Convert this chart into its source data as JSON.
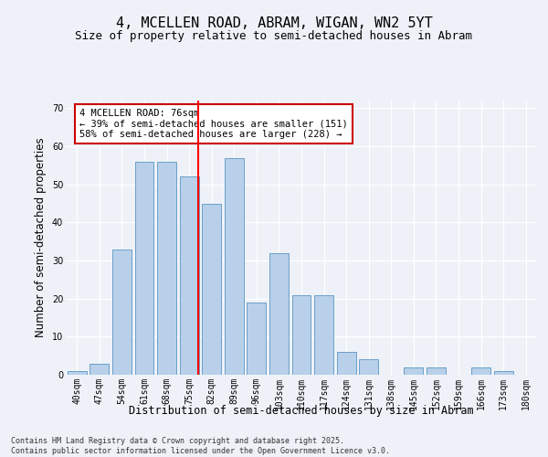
{
  "title_line1": "4, MCELLEN ROAD, ABRAM, WIGAN, WN2 5YT",
  "title_line2": "Size of property relative to semi-detached houses in Abram",
  "xlabel": "Distribution of semi-detached houses by size in Abram",
  "ylabel": "Number of semi-detached properties",
  "categories": [
    "40sqm",
    "47sqm",
    "54sqm",
    "61sqm",
    "68sqm",
    "75sqm",
    "82sqm",
    "89sqm",
    "96sqm",
    "103sqm",
    "110sqm",
    "117sqm",
    "124sqm",
    "131sqm",
    "138sqm",
    "145sqm",
    "152sqm",
    "159sqm",
    "166sqm",
    "173sqm",
    "180sqm"
  ],
  "values": [
    1,
    3,
    33,
    56,
    56,
    52,
    45,
    57,
    19,
    32,
    21,
    21,
    6,
    4,
    0,
    2,
    2,
    0,
    2,
    1,
    0
  ],
  "bar_color": "#b8d0ea",
  "bar_edge_color": "#6a9fc8",
  "red_line_x": 5.4,
  "annotation_text": "4 MCELLEN ROAD: 76sqm\n← 39% of semi-detached houses are smaller (151)\n58% of semi-detached houses are larger (228) →",
  "annotation_box_color": "#ffffff",
  "annotation_box_edge_color": "#cc0000",
  "ylim": [
    0,
    72
  ],
  "yticks": [
    0,
    10,
    20,
    30,
    40,
    50,
    60,
    70
  ],
  "background_color": "#eef2f8",
  "plot_bg_color": "#eef2f8",
  "footer_line1": "Contains HM Land Registry data © Crown copyright and database right 2025.",
  "footer_line2": "Contains public sector information licensed under the Open Government Licence v3.0.",
  "title_fontsize": 11,
  "subtitle_fontsize": 9,
  "axis_label_fontsize": 8.5,
  "tick_fontsize": 7,
  "annotation_fontsize": 7.5,
  "footer_fontsize": 6
}
